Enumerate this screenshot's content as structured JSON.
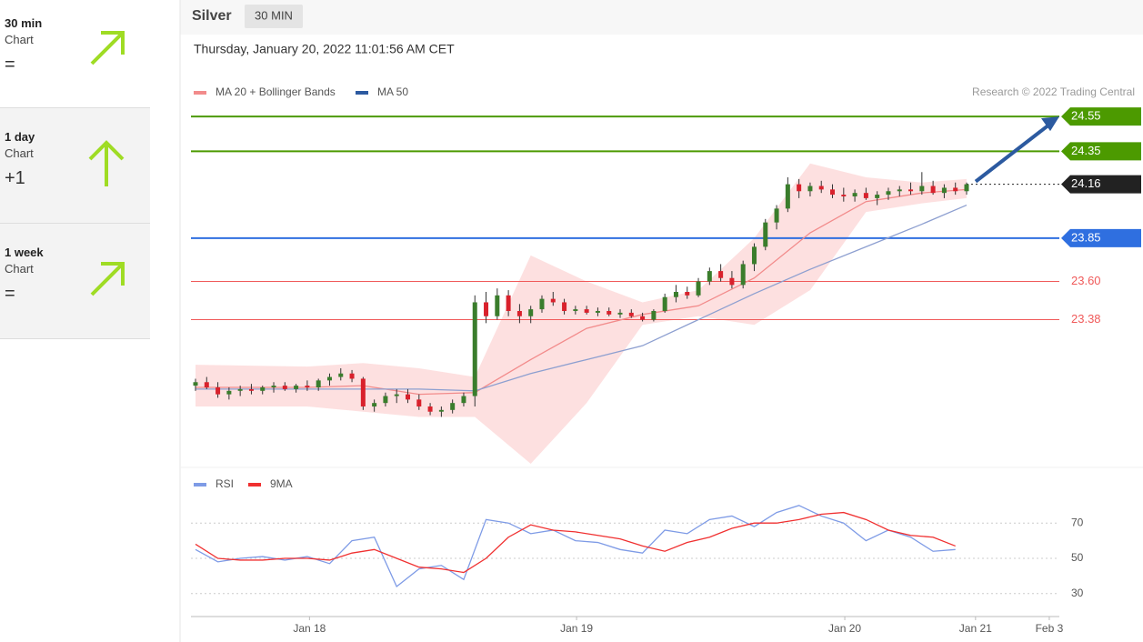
{
  "sidebar": {
    "items": [
      {
        "period": "30 min",
        "label": "Chart",
        "score": "="
      },
      {
        "period": "1 day",
        "label": "Chart",
        "score": "+1"
      },
      {
        "period": "1 week",
        "label": "Chart",
        "score": "="
      }
    ]
  },
  "header": {
    "instrument": "Silver",
    "timeframe": "30 MIN",
    "timestamp": "Thursday, January 20, 2022 11:01:56 AM CET"
  },
  "credit": "Research © 2022 Trading Central",
  "chart_data": [
    {
      "type": "candlestick",
      "up_color": "#3a7d2c",
      "down_color": "#d9212c",
      "ylim": [
        22.55,
        24.75
      ],
      "xlim": [
        0,
        77.3
      ],
      "xticks": [
        {
          "value": 10.2,
          "label": "Jan 18"
        },
        {
          "value": 34.1,
          "label": "Jan 19"
        },
        {
          "value": 58.1,
          "label": "Jan 20"
        },
        {
          "value": 69.8,
          "label": "Jan 21"
        },
        {
          "value": 76.4,
          "label": "Feb 3"
        }
      ],
      "levels": [
        {
          "value": 24.55,
          "label": "24.55",
          "color": "#4c9a00",
          "tag": true
        },
        {
          "value": 24.35,
          "label": "24.35",
          "color": "#4c9a00",
          "tag": true
        },
        {
          "value": 24.16,
          "label": "24.16",
          "color": "#222222",
          "tag": true,
          "dotted": true
        },
        {
          "value": 23.85,
          "label": "23.85",
          "color": "#2f6fe0",
          "tag": true
        },
        {
          "value": 23.6,
          "label": "23.60",
          "color": "#f05a5a",
          "tag": false
        },
        {
          "value": 23.38,
          "label": "23.38",
          "color": "#f05a5a",
          "tag": false
        }
      ],
      "ohlc": [
        [
          23.0,
          23.04,
          22.97,
          23.02
        ],
        [
          23.02,
          23.05,
          22.98,
          22.99
        ],
        [
          22.99,
          23.02,
          22.93,
          22.95
        ],
        [
          22.95,
          22.99,
          22.92,
          22.97
        ],
        [
          22.97,
          23.0,
          22.94,
          22.98
        ],
        [
          22.98,
          23.01,
          22.95,
          22.97
        ],
        [
          22.97,
          23.0,
          22.95,
          22.99
        ],
        [
          22.99,
          23.02,
          22.96,
          23.0
        ],
        [
          23.0,
          23.02,
          22.97,
          22.98
        ],
        [
          22.98,
          23.01,
          22.96,
          23.0
        ],
        [
          23.0,
          23.03,
          22.97,
          22.99
        ],
        [
          22.99,
          23.04,
          22.97,
          23.03
        ],
        [
          23.03,
          23.07,
          23.0,
          23.05
        ],
        [
          23.05,
          23.1,
          23.03,
          23.07
        ],
        [
          23.07,
          23.09,
          23.02,
          23.04
        ],
        [
          23.04,
          23.05,
          22.86,
          22.88
        ],
        [
          22.88,
          22.92,
          22.85,
          22.9
        ],
        [
          22.9,
          22.96,
          22.88,
          22.94
        ],
        [
          22.94,
          22.98,
          22.9,
          22.95
        ],
        [
          22.95,
          22.98,
          22.9,
          22.92
        ],
        [
          22.92,
          22.95,
          22.86,
          22.88
        ],
        [
          22.88,
          22.9,
          22.83,
          22.85
        ],
        [
          22.85,
          22.88,
          22.82,
          22.86
        ],
        [
          22.86,
          22.92,
          22.84,
          22.9
        ],
        [
          22.9,
          22.96,
          22.88,
          22.94
        ],
        [
          22.94,
          23.52,
          22.88,
          23.48
        ],
        [
          23.48,
          23.54,
          23.36,
          23.4
        ],
        [
          23.4,
          23.56,
          23.38,
          23.52
        ],
        [
          23.52,
          23.55,
          23.4,
          23.43
        ],
        [
          23.43,
          23.47,
          23.36,
          23.4
        ],
        [
          23.4,
          23.46,
          23.36,
          23.44
        ],
        [
          23.44,
          23.52,
          23.42,
          23.5
        ],
        [
          23.5,
          23.54,
          23.46,
          23.48
        ],
        [
          23.48,
          23.5,
          23.41,
          23.43
        ],
        [
          23.43,
          23.46,
          23.41,
          23.44
        ],
        [
          23.44,
          23.46,
          23.41,
          23.42
        ],
        [
          23.42,
          23.45,
          23.4,
          23.43
        ],
        [
          23.43,
          23.45,
          23.4,
          23.41
        ],
        [
          23.41,
          23.44,
          23.39,
          23.42
        ],
        [
          23.42,
          23.44,
          23.39,
          23.4
        ],
        [
          23.4,
          23.42,
          23.37,
          23.38
        ],
        [
          23.38,
          23.44,
          23.37,
          23.43
        ],
        [
          23.43,
          23.53,
          23.42,
          23.51
        ],
        [
          23.51,
          23.58,
          23.48,
          23.54
        ],
        [
          23.54,
          23.57,
          23.5,
          23.52
        ],
        [
          23.52,
          23.62,
          23.51,
          23.6
        ],
        [
          23.6,
          23.68,
          23.58,
          23.66
        ],
        [
          23.66,
          23.7,
          23.6,
          23.62
        ],
        [
          23.62,
          23.66,
          23.56,
          23.58
        ],
        [
          23.58,
          23.72,
          23.56,
          23.7
        ],
        [
          23.7,
          23.82,
          23.66,
          23.8
        ],
        [
          23.8,
          23.96,
          23.78,
          23.94
        ],
        [
          23.94,
          24.04,
          23.9,
          24.02
        ],
        [
          24.02,
          24.2,
          24.0,
          24.16
        ],
        [
          24.16,
          24.19,
          24.08,
          24.12
        ],
        [
          24.12,
          24.17,
          24.09,
          24.15
        ],
        [
          24.15,
          24.18,
          24.11,
          24.13
        ],
        [
          24.13,
          24.16,
          24.08,
          24.1
        ],
        [
          24.1,
          24.14,
          24.06,
          24.09
        ],
        [
          24.09,
          24.13,
          24.06,
          24.11
        ],
        [
          24.11,
          24.14,
          24.07,
          24.08
        ],
        [
          24.08,
          24.12,
          24.04,
          24.1
        ],
        [
          24.1,
          24.14,
          24.07,
          24.12
        ],
        [
          24.12,
          24.15,
          24.09,
          24.13
        ],
        [
          24.13,
          24.17,
          24.1,
          24.12
        ],
        [
          24.12,
          24.23,
          24.1,
          24.15
        ],
        [
          24.15,
          24.18,
          24.1,
          24.11
        ],
        [
          24.11,
          24.16,
          24.08,
          24.14
        ],
        [
          24.14,
          24.17,
          24.1,
          24.12
        ],
        [
          24.12,
          24.17,
          24.1,
          24.16
        ]
      ],
      "band": {
        "x": [
          0,
          10,
          15,
          20,
          25,
          30,
          35,
          40,
          45,
          50,
          55,
          60,
          65,
          69
        ],
        "upper": [
          23.12,
          23.11,
          23.13,
          23.1,
          23.05,
          23.75,
          23.6,
          23.48,
          23.55,
          23.85,
          24.28,
          24.2,
          24.17,
          24.19
        ],
        "lower": [
          22.88,
          22.88,
          22.85,
          22.82,
          22.82,
          22.55,
          22.9,
          23.35,
          23.4,
          23.35,
          23.55,
          24.0,
          24.05,
          24.08
        ],
        "color": "#fcd3d3"
      },
      "series": [
        {
          "name": "MA 20 + Bollinger Bands",
          "color": "#f28b8b",
          "x": [
            0,
            10,
            15,
            20,
            25,
            30,
            35,
            40,
            45,
            50,
            55,
            60,
            65,
            69
          ],
          "values": [
            22.99,
            22.99,
            23.0,
            22.95,
            22.96,
            23.15,
            23.33,
            23.41,
            23.46,
            23.62,
            23.88,
            24.06,
            24.11,
            24.13
          ]
        },
        {
          "name": "MA 50",
          "color": "#8d9fd0",
          "legend_color": "#2c5aa0",
          "x": [
            0,
            10,
            20,
            25,
            30,
            35,
            40,
            45,
            50,
            55,
            60,
            65,
            69
          ],
          "values": [
            22.98,
            22.98,
            22.98,
            22.97,
            23.07,
            23.15,
            23.23,
            23.38,
            23.53,
            23.67,
            23.8,
            23.93,
            24.04
          ]
        }
      ]
    },
    {
      "type": "line",
      "ylim": [
        17,
        83
      ],
      "yticks": [
        30,
        50,
        70
      ],
      "xlim": [
        0,
        77.3
      ],
      "grid": true,
      "series": [
        {
          "name": "RSI",
          "color": "#7e9be6",
          "x": [
            0,
            2,
            4,
            6,
            8,
            10,
            12,
            14,
            16,
            18,
            20,
            22,
            24,
            26,
            28,
            30,
            32,
            34,
            36,
            38,
            40,
            42,
            44,
            46,
            48,
            50,
            52,
            54,
            56,
            58,
            60,
            62,
            64,
            66,
            68
          ],
          "values": [
            55,
            48,
            50,
            51,
            49,
            51,
            47,
            60,
            62,
            34,
            44,
            46,
            38,
            72,
            70,
            64,
            66,
            60,
            59,
            55,
            53,
            66,
            64,
            72,
            74,
            68,
            76,
            80,
            74,
            70,
            60,
            66,
            62,
            54,
            55
          ]
        },
        {
          "name": "9MA",
          "color": "#f03030",
          "x": [
            0,
            2,
            4,
            6,
            8,
            10,
            12,
            14,
            16,
            18,
            20,
            22,
            24,
            26,
            28,
            30,
            32,
            34,
            36,
            38,
            40,
            42,
            44,
            46,
            48,
            50,
            52,
            54,
            56,
            58,
            60,
            62,
            64,
            66,
            68
          ],
          "values": [
            58,
            50,
            49,
            49,
            50,
            50,
            49,
            53,
            55,
            50,
            45,
            44,
            42,
            50,
            62,
            69,
            66,
            65,
            63,
            61,
            57,
            54,
            59,
            62,
            67,
            70,
            70,
            72,
            75,
            76,
            72,
            66,
            63,
            62,
            57
          ]
        }
      ]
    }
  ]
}
